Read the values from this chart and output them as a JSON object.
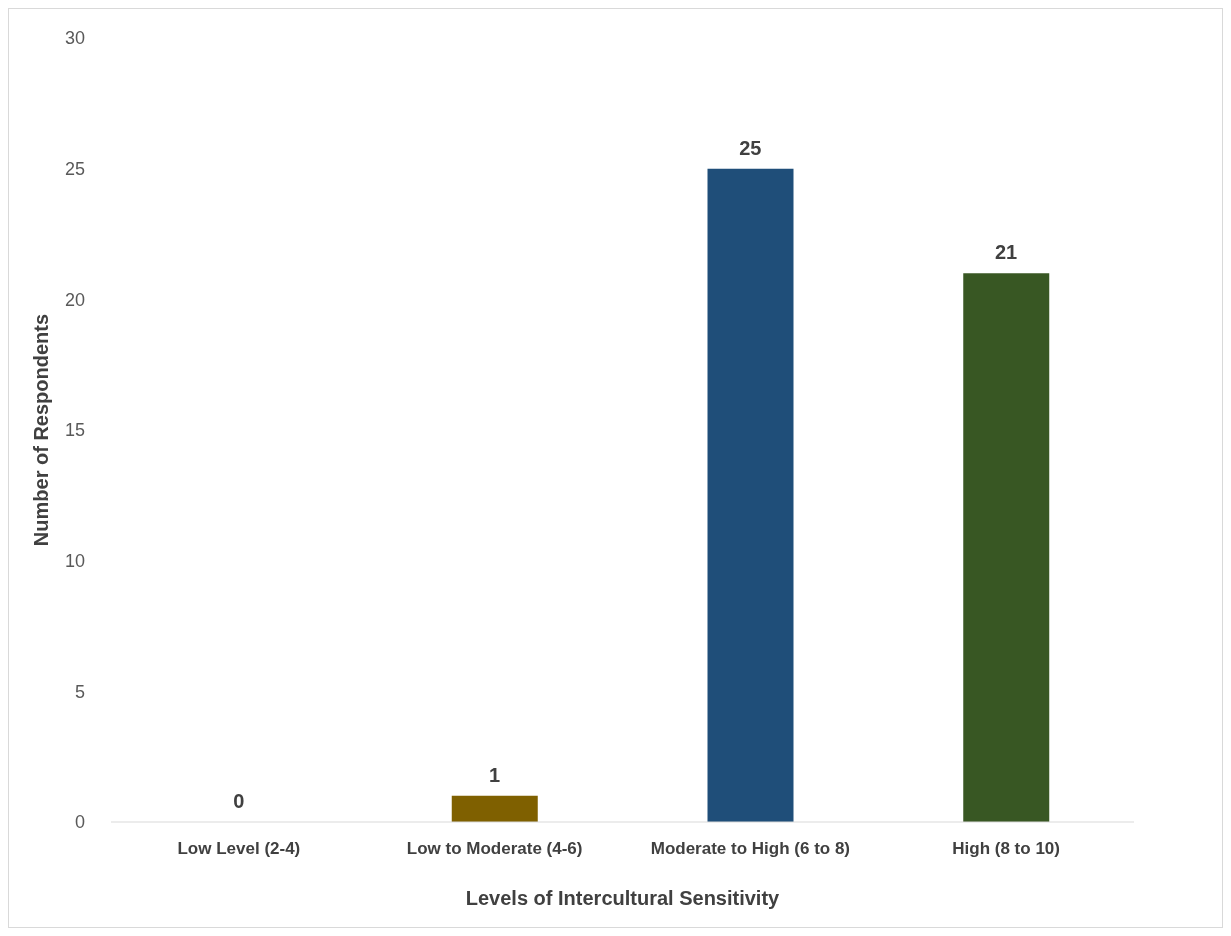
{
  "chart_data": {
    "type": "bar",
    "xlabel": "Levels of Intercultural Sensitivity",
    "ylabel": "Number of Respondents",
    "categories": [
      "Low Level (2-4)",
      "Low to Moderate (4-6)",
      "Moderate to High (6 to 8)",
      "High (8 to 10)"
    ],
    "values": [
      0,
      1,
      25,
      21
    ],
    "colors": [
      "#c55a11",
      "#7f6000",
      "#1f4e79",
      "#385723"
    ],
    "ylim": [
      0,
      30
    ],
    "yticks": [
      0,
      5,
      10,
      15,
      20,
      25,
      30
    ],
    "grid": false,
    "data_labels": true
  }
}
